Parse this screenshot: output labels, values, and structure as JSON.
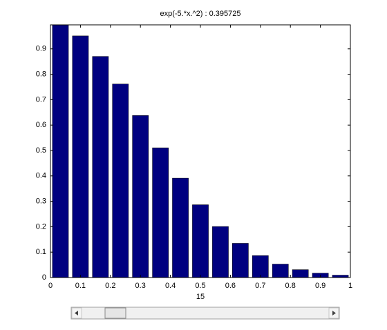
{
  "chart_data": {
    "type": "bar",
    "title": "exp(-5.*x.^2)  :  0.395725",
    "x_label": "15",
    "x": [
      0.0333,
      0.1,
      0.1667,
      0.2333,
      0.3,
      0.3667,
      0.4333,
      0.5,
      0.5667,
      0.6333,
      0.7,
      0.7667,
      0.8333,
      0.9,
      0.9667
    ],
    "values": [
      0.9945,
      0.9512,
      0.8703,
      0.7617,
      0.6376,
      0.5106,
      0.3911,
      0.2865,
      0.2008,
      0.1346,
      0.0863,
      0.0529,
      0.031,
      0.0174,
      0.0094
    ],
    "color": "#000080",
    "xlim": [
      0,
      1
    ],
    "xticks": [
      0,
      0.1,
      0.2,
      0.3,
      0.4,
      0.5,
      0.6,
      0.7,
      0.8,
      0.9,
      1
    ],
    "ylim": [
      0,
      0.9945
    ],
    "yticks": [
      0,
      0.1,
      0.2,
      0.3,
      0.4,
      0.5,
      0.6,
      0.7,
      0.8,
      0.9
    ]
  }
}
